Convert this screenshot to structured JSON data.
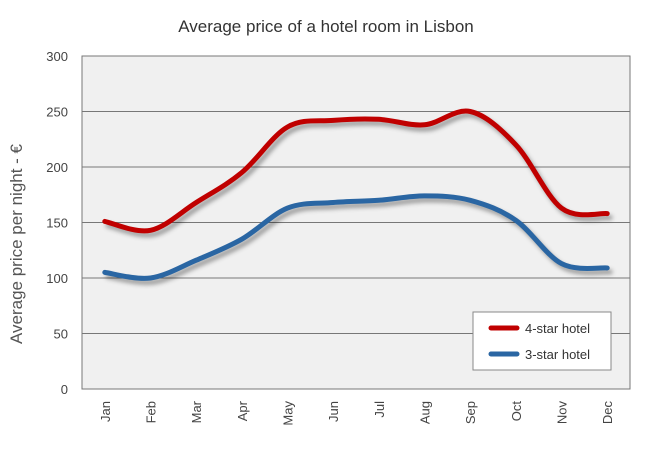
{
  "chart_data": {
    "type": "line",
    "title": "Average price of a hotel room in Lisbon",
    "xlabel": "",
    "ylabel": "Average price per night - €",
    "categories": [
      "Jan",
      "Feb",
      "Mar",
      "Apr",
      "May",
      "Jun",
      "Jul",
      "Aug",
      "Sep",
      "Oct",
      "Nov",
      "Dec"
    ],
    "ylim": [
      0,
      300
    ],
    "yticks": [
      0,
      50,
      100,
      150,
      200,
      250,
      300
    ],
    "grid": true,
    "legend_position": "bottom-right",
    "series": [
      {
        "name": "4-star hotel",
        "color": "#c00000",
        "values": [
          151,
          143,
          168,
          195,
          236,
          242,
          243,
          238,
          250,
          220,
          163,
          158
        ]
      },
      {
        "name": "3-star hotel",
        "color": "#2a66a3",
        "values": [
          105,
          100,
          116,
          135,
          163,
          168,
          170,
          174,
          170,
          152,
          113,
          109
        ]
      }
    ],
    "background_color": "#f0f0f0",
    "grid_color": "#777777"
  }
}
